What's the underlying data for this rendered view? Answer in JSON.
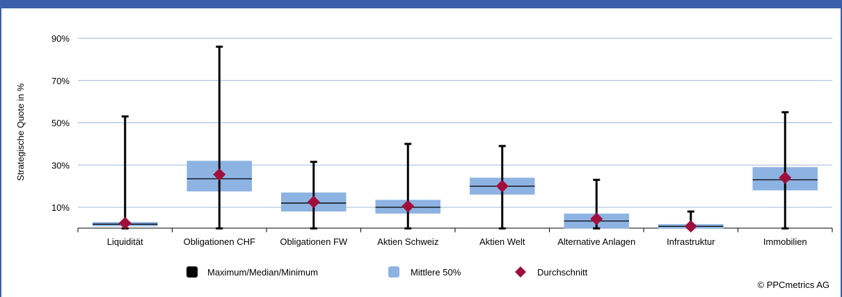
{
  "chart_data": {
    "type": "boxplot",
    "ylabel": "Strategische Quote in %",
    "ylim": [
      0,
      100
    ],
    "yticks": [
      10,
      30,
      50,
      70,
      90
    ],
    "ytick_labels": [
      "10%",
      "30%",
      "50%",
      "70%",
      "90%"
    ],
    "grid": true,
    "legend_position": "bottom",
    "colors": {
      "box": "#8db3e2",
      "whisker": "#000000",
      "mean": "#a00f3c",
      "grid": "#9db8d6"
    },
    "categories": [
      "Liquidität",
      "Obligationen CHF",
      "Obligationen FW",
      "Aktien Schweiz",
      "Aktien Welt",
      "Alternative Anlagen",
      "Infrastruktur",
      "Immobilien"
    ],
    "series": [
      {
        "name": "Maximum/Median/Minimum",
        "max": [
          53,
          86,
          31.5,
          40,
          39,
          23,
          8,
          55
        ],
        "median": [
          2,
          23.5,
          12,
          10,
          20,
          3.5,
          1,
          23
        ],
        "min": [
          0,
          0,
          0,
          0,
          0,
          0,
          0,
          0
        ]
      },
      {
        "name": "Mittlere 50%",
        "q1": [
          1,
          17.5,
          8,
          7,
          16,
          0,
          0,
          18
        ],
        "q3": [
          3,
          32,
          17,
          13.5,
          24,
          7,
          2,
          29
        ]
      },
      {
        "name": "Durchschnitt",
        "values": [
          2.5,
          25.5,
          12.5,
          10.5,
          20,
          4.5,
          1,
          24
        ]
      }
    ]
  },
  "legend": [
    {
      "label": "Maximum/Median/Minimum",
      "color": "#000000",
      "shape": "square"
    },
    {
      "label": "Mittlere 50%",
      "color": "#8db3e2",
      "shape": "square"
    },
    {
      "label": "Durchschnitt",
      "color": "#a00f3c",
      "shape": "diamond"
    }
  ],
  "copyright": "© PPCmetrics AG"
}
